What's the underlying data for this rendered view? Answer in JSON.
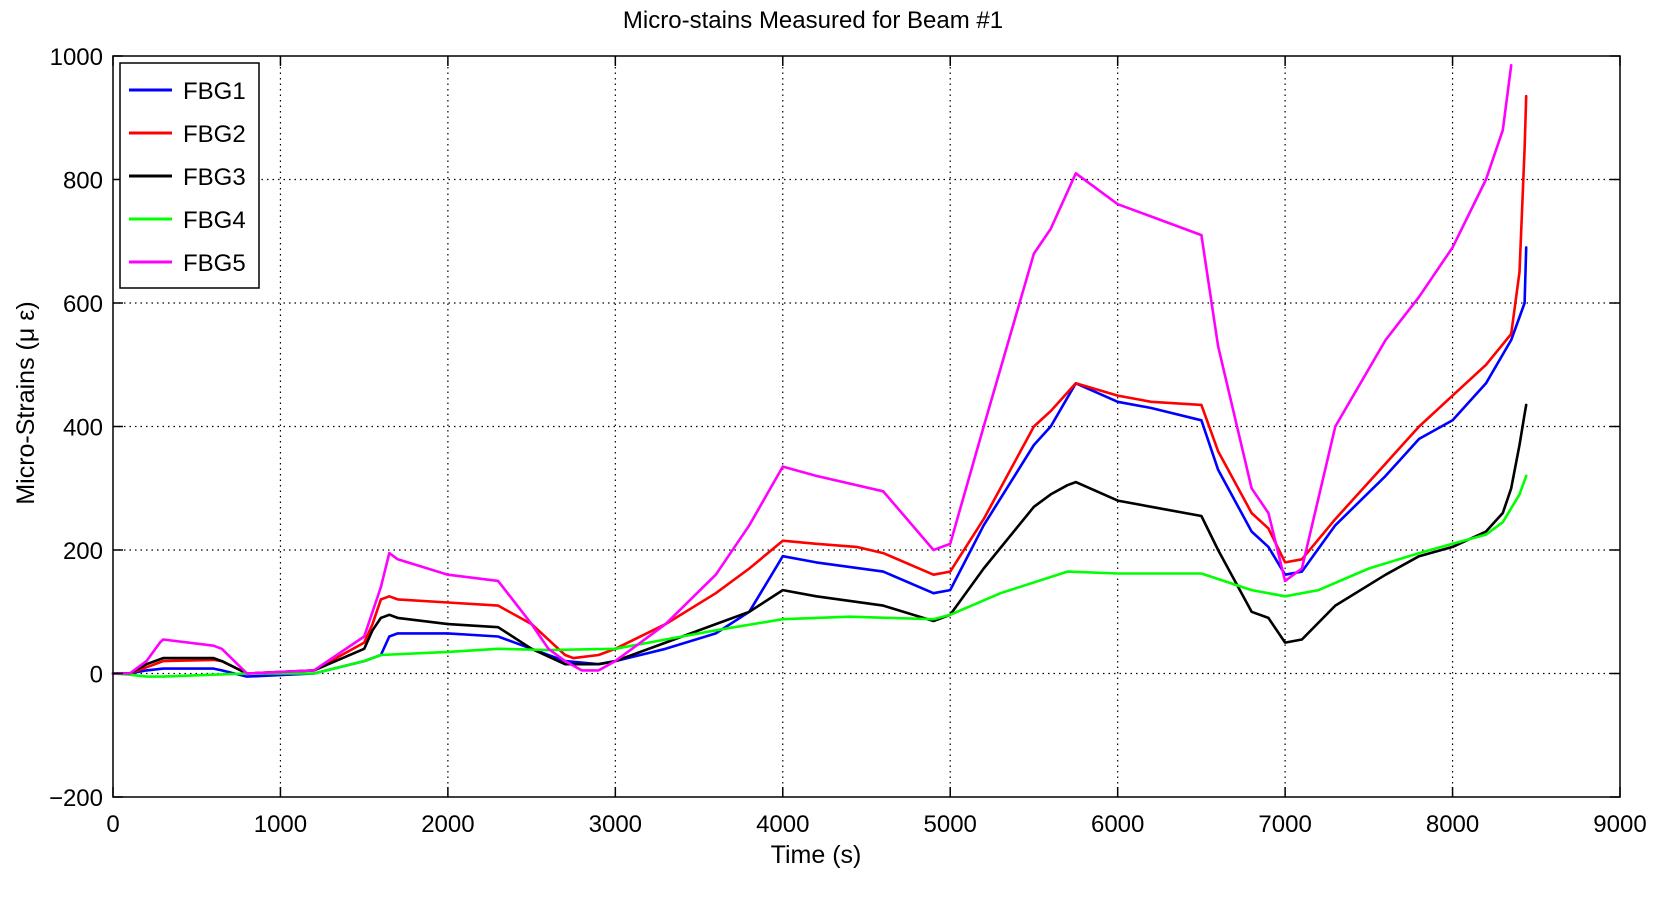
{
  "chart_data": {
    "type": "line",
    "title": "Micro-stains Measured for Beam #1",
    "xlabel": "Time (s)",
    "ylabel": "Micro-Strains (μ ε)",
    "xlim": [
      0,
      9000
    ],
    "ylim": [
      -200,
      1000
    ],
    "xticks": [
      0,
      1000,
      2000,
      3000,
      4000,
      5000,
      6000,
      7000,
      8000,
      9000
    ],
    "yticks": [
      -200,
      0,
      200,
      400,
      600,
      800,
      1000
    ],
    "ytick_labels": [
      "−200",
      "0",
      "200",
      "400",
      "600",
      "800",
      "1000"
    ],
    "grid": true,
    "grid_style": "dotted",
    "legend_position": "top-left",
    "series": [
      {
        "name": "FBG1",
        "color": "#0000ff",
        "x": [
          0,
          100,
          200,
          300,
          600,
          650,
          800,
          1200,
          1500,
          1600,
          1650,
          1700,
          2000,
          2300,
          2500,
          2700,
          2900,
          3000,
          3300,
          3600,
          3800,
          4000,
          4200,
          4600,
          4900,
          5000,
          5200,
          5500,
          5600,
          5750,
          6000,
          6200,
          6500,
          6600,
          6800,
          6900,
          7000,
          7100,
          7300,
          7600,
          7800,
          8000,
          8200,
          8350,
          8430,
          8440
        ],
        "values": [
          0,
          0,
          5,
          8,
          8,
          5,
          -5,
          0,
          20,
          30,
          60,
          65,
          65,
          60,
          40,
          20,
          15,
          20,
          40,
          65,
          100,
          190,
          180,
          165,
          130,
          135,
          240,
          370,
          400,
          470,
          440,
          430,
          410,
          330,
          230,
          205,
          160,
          165,
          240,
          320,
          380,
          410,
          470,
          540,
          600,
          690
        ]
      },
      {
        "name": "FBG2",
        "color": "#ff0000",
        "x": [
          0,
          100,
          200,
          300,
          600,
          650,
          800,
          1200,
          1500,
          1550,
          1600,
          1650,
          1700,
          2000,
          2300,
          2500,
          2700,
          2750,
          2900,
          3000,
          3300,
          3600,
          3800,
          4000,
          4200,
          4440,
          4600,
          4900,
          5000,
          5200,
          5500,
          5600,
          5750,
          6000,
          6200,
          6500,
          6600,
          6800,
          6900,
          7000,
          7100,
          7300,
          7600,
          7800,
          8000,
          8200,
          8350,
          8400,
          8430,
          8440
        ],
        "values": [
          0,
          0,
          10,
          20,
          22,
          20,
          0,
          5,
          50,
          80,
          120,
          125,
          120,
          115,
          110,
          80,
          30,
          25,
          30,
          40,
          80,
          130,
          170,
          215,
          210,
          205,
          195,
          160,
          165,
          250,
          400,
          425,
          470,
          450,
          440,
          435,
          360,
          260,
          235,
          180,
          185,
          250,
          340,
          400,
          450,
          500,
          550,
          650,
          850,
          935
        ]
      },
      {
        "name": "FBG3",
        "color": "#000000",
        "x": [
          0,
          100,
          200,
          300,
          600,
          650,
          800,
          1200,
          1500,
          1550,
          1600,
          1650,
          1700,
          2000,
          2300,
          2500,
          2700,
          2900,
          3000,
          3300,
          3600,
          3800,
          4000,
          4200,
          4600,
          4900,
          5000,
          5200,
          5500,
          5600,
          5700,
          5750,
          6000,
          6200,
          6500,
          6600,
          6800,
          6900,
          7000,
          7100,
          7300,
          7600,
          7800,
          8000,
          8200,
          8300,
          8350,
          8400,
          8430,
          8440
        ],
        "values": [
          0,
          0,
          15,
          25,
          25,
          20,
          0,
          5,
          40,
          70,
          90,
          95,
          90,
          80,
          75,
          40,
          15,
          15,
          20,
          50,
          80,
          100,
          135,
          125,
          110,
          85,
          95,
          170,
          270,
          290,
          305,
          310,
          280,
          270,
          255,
          200,
          100,
          90,
          50,
          55,
          110,
          160,
          190,
          205,
          230,
          260,
          300,
          370,
          420,
          435
        ]
      },
      {
        "name": "FBG4",
        "color": "#00ff00",
        "x": [
          0,
          100,
          200,
          300,
          600,
          800,
          1200,
          1500,
          1600,
          2000,
          2300,
          2600,
          3000,
          3300,
          3600,
          4000,
          4400,
          4900,
          5000,
          5300,
          5700,
          6000,
          6500,
          6800,
          7000,
          7200,
          7500,
          7800,
          8000,
          8200,
          8300,
          8400,
          8440
        ],
        "values": [
          0,
          -2,
          -5,
          -5,
          -2,
          0,
          0,
          20,
          30,
          35,
          40,
          38,
          40,
          55,
          70,
          88,
          92,
          88,
          95,
          130,
          165,
          162,
          162,
          135,
          125,
          135,
          170,
          195,
          210,
          225,
          245,
          290,
          320
        ]
      },
      {
        "name": "FBG5",
        "color": "#ff00ff",
        "x": [
          0,
          100,
          200,
          280,
          300,
          600,
          650,
          800,
          1200,
          1500,
          1600,
          1650,
          1700,
          2000,
          2300,
          2500,
          2600,
          2700,
          2800,
          2900,
          3000,
          3300,
          3600,
          3800,
          4000,
          4200,
          4600,
          4900,
          5000,
          5200,
          5500,
          5600,
          5750,
          6000,
          6200,
          6500,
          6600,
          6800,
          6900,
          7000,
          7100,
          7300,
          7600,
          7800,
          8000,
          8200,
          8300,
          8350
        ],
        "values": [
          0,
          0,
          20,
          50,
          55,
          45,
          40,
          0,
          5,
          60,
          140,
          195,
          185,
          160,
          150,
          80,
          40,
          20,
          5,
          5,
          20,
          80,
          160,
          240,
          335,
          320,
          295,
          200,
          210,
          400,
          680,
          720,
          810,
          760,
          740,
          710,
          530,
          300,
          260,
          150,
          170,
          400,
          540,
          610,
          690,
          800,
          880,
          985
        ]
      }
    ]
  }
}
